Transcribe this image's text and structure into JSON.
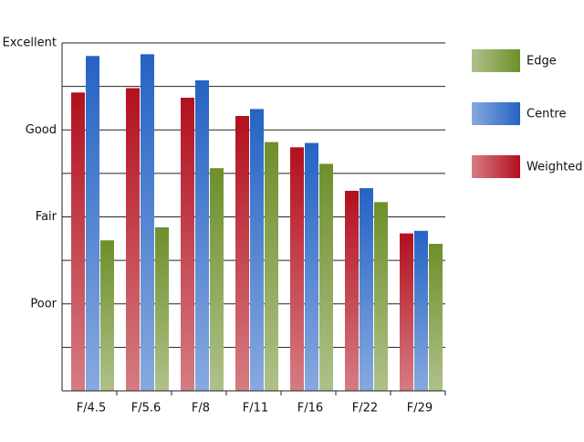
{
  "chart_data": {
    "type": "bar",
    "categories": [
      "F/4.5",
      "F/5.6",
      "F/8",
      "F/11",
      "F/16",
      "F/22",
      "F/29"
    ],
    "series": [
      {
        "name": "Weighted",
        "color": "#b3101e",
        "values": [
          3.43,
          3.48,
          3.37,
          3.16,
          2.8,
          2.3,
          1.81
        ]
      },
      {
        "name": "Centre",
        "color": "#2563c4",
        "values": [
          3.85,
          3.87,
          3.57,
          3.24,
          2.85,
          2.33,
          1.84
        ]
      },
      {
        "name": "Edge",
        "color": "#6e8f2a",
        "values": [
          1.73,
          1.88,
          2.56,
          2.86,
          2.61,
          2.17,
          1.69
        ]
      }
    ],
    "ylim": [
      0,
      4
    ],
    "yticks": [
      {
        "value": 1,
        "label": "Poor"
      },
      {
        "value": 2,
        "label": "Fair"
      },
      {
        "value": 3,
        "label": "Good"
      },
      {
        "value": 4,
        "label": "Excellent"
      }
    ],
    "minor_yticks": [
      0.5,
      1.5,
      2.5,
      3.5
    ],
    "grid": true
  }
}
